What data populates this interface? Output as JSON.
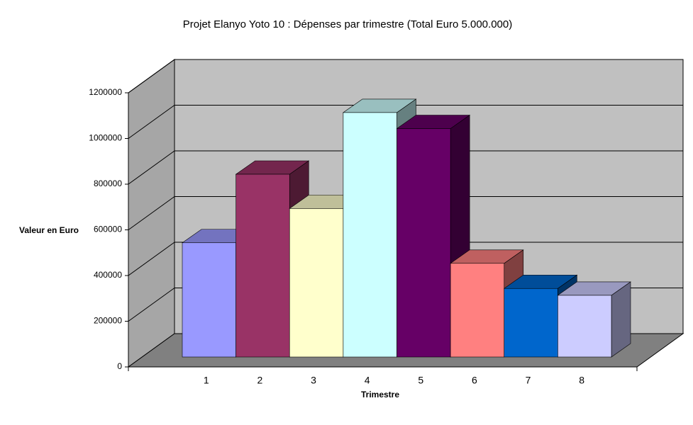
{
  "chart_data": {
    "type": "bar3d",
    "title": "Projet Elanyo Yoto 10 : Dépenses par trimestre (Total Euro 5.000.000)",
    "x_label": "Trimestre",
    "y_label": "Valeur en Euro",
    "categories": [
      "1",
      "2",
      "3",
      "4",
      "5",
      "6",
      "7",
      "8"
    ],
    "values": [
      500000,
      800000,
      650000,
      1070000,
      1000000,
      410000,
      300000,
      270000
    ],
    "colors": [
      "#9999ff",
      "#993366",
      "#ffffcc",
      "#ccffff",
      "#660066",
      "#ff8080",
      "#0066cc",
      "#ccccff"
    ],
    "ylim": [
      0,
      1200000
    ],
    "yticks": [
      0,
      200000,
      400000,
      600000,
      800000,
      1000000,
      1200000
    ],
    "grid": true
  }
}
